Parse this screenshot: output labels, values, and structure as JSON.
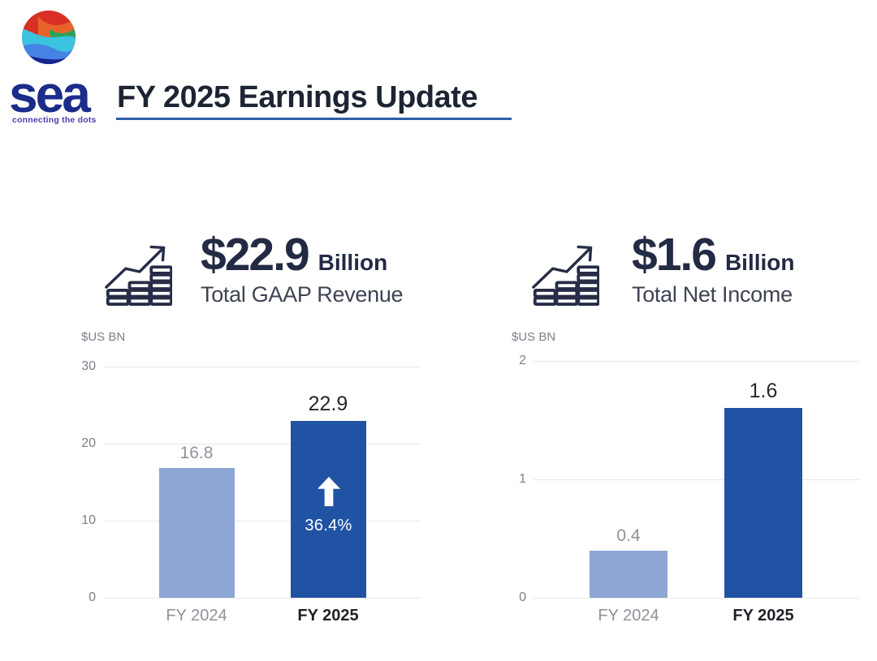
{
  "header": {
    "logo": {
      "wordmark": "sea",
      "tagline": "connecting the dots"
    },
    "title": "FY 2025 Earnings Update"
  },
  "colors": {
    "title_navy": "#1d2433",
    "underline_blue": "#2e5ea8",
    "stat_navy": "#232a44",
    "bar_light_blue": "#8da6d3",
    "bar_dark_blue": "#2153a4",
    "axis_gray": "#7c8089",
    "label_gray": "#8e929b",
    "label_dark": "#26282e",
    "gridline_gray": "#e7e7ea",
    "logo_red": "#d93025",
    "logo_orange": "#e8632c",
    "logo_green": "#2da157",
    "logo_cyan": "#3bc3e0",
    "logo_blue": "#4483e3",
    "logo_navy": "#16258f"
  },
  "chart_data": [
    {
      "type": "bar",
      "title": "Total GAAP Revenue",
      "stat_value": "$22.9",
      "stat_unit": "Billion",
      "ylabel": "$US BN",
      "ylim": [
        0,
        30
      ],
      "y_ticks": [
        30,
        20,
        10,
        0
      ],
      "categories": [
        "FY 2024",
        "FY 2025"
      ],
      "values": [
        16.8,
        22.9
      ],
      "bar_colors": [
        "#8da6d3",
        "#2153a4"
      ],
      "annotation": "36.4%",
      "grid": true,
      "legend": false
    },
    {
      "type": "bar",
      "title": "Total Net Income",
      "stat_value": "$1.6",
      "stat_unit": "Billion",
      "ylabel": "$US BN",
      "ylim": [
        0,
        2
      ],
      "y_ticks": [
        2,
        1,
        0
      ],
      "categories": [
        "FY 2024",
        "FY 2025"
      ],
      "values": [
        0.4,
        1.6
      ],
      "bar_colors": [
        "#8da6d3",
        "#2153a4"
      ],
      "annotation": null,
      "grid": true,
      "legend": false
    }
  ]
}
